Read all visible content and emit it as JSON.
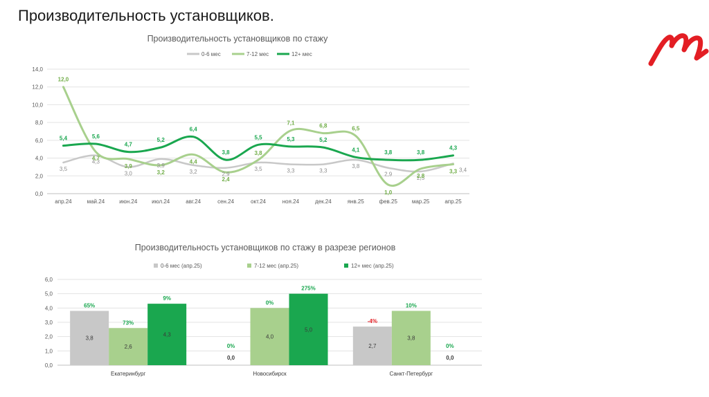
{
  "page": {
    "title": "Производительность установщиков."
  },
  "brand": {
    "logo_icon": "brand-logo-icon",
    "accent": "#e31e24"
  },
  "chart_data": [
    {
      "type": "line",
      "title": "Производительность установщиков по стажу",
      "xlabel": "",
      "ylabel": "",
      "categories": [
        "апр.24",
        "май.24",
        "июн.24",
        "июл.24",
        "авг.24",
        "сен.24",
        "окт.24",
        "ноя.24",
        "дек.24",
        "янв.25",
        "фев.25",
        "мар.25",
        "апр.25"
      ],
      "ylim": [
        0,
        14
      ],
      "yticks": [
        "0,0",
        "2,0",
        "4,0",
        "6,0",
        "8,0",
        "10,0",
        "12,0",
        "14,0"
      ],
      "grid": true,
      "legend": "top",
      "series": [
        {
          "name": "0-6 мес",
          "color": "#c8c8c8",
          "values": [
            3.5,
            4.3,
            3.0,
            3.9,
            3.2,
            2.9,
            3.5,
            3.3,
            3.3,
            3.8,
            2.9,
            2.5,
            3.4
          ],
          "labels": [
            "3,5",
            "4,3",
            "3,0",
            "3,9",
            "3,2",
            "2,9",
            "3,5",
            "3,3",
            "3,3",
            "3,8",
            "2,9",
            "2,5",
            "3,4"
          ]
        },
        {
          "name": "7-12 мес",
          "color": "#a8d08d",
          "values": [
            12.0,
            4.7,
            3.9,
            3.2,
            4.4,
            2.4,
            3.8,
            7.1,
            6.8,
            6.5,
            1.0,
            2.8,
            3.3
          ],
          "labels": [
            "12,0",
            "4,7",
            "3,9",
            "3,2",
            "4,4",
            "2,4",
            "3,8",
            "7,1",
            "6,8",
            "6,5",
            "1,0",
            "2,8",
            "3,3"
          ]
        },
        {
          "name": "12+ мес",
          "color": "#1aa74f",
          "values": [
            5.4,
            5.6,
            4.7,
            5.2,
            6.4,
            3.8,
            5.5,
            5.3,
            5.2,
            4.1,
            3.8,
            3.8,
            4.3
          ],
          "labels": [
            "5,4",
            "5,6",
            "4,7",
            "5,2",
            "6,4",
            "3,8",
            "5,5",
            "5,3",
            "5,2",
            "4,1",
            "3,8",
            "3,8",
            "4,3"
          ]
        }
      ]
    },
    {
      "type": "bar",
      "title": "Производительность установщиков по стажу в разрезе регионов",
      "xlabel": "",
      "ylabel": "",
      "categories": [
        "Екатеринбург",
        "Новосибирск",
        "Санкт-Петербург"
      ],
      "ylim": [
        0,
        6
      ],
      "yticks": [
        "0,0",
        "1,0",
        "2,0",
        "3,0",
        "4,0",
        "5,0",
        "6,0"
      ],
      "grid": true,
      "legend": "top",
      "series": [
        {
          "name": "0-6 мес (апр.25)",
          "color": "#c8c8c8",
          "values": [
            3.8,
            0.0,
            2.7
          ],
          "labels": [
            "3,8",
            "0,0",
            "2,7"
          ],
          "changes": [
            "65%",
            "0%",
            "-4%"
          ]
        },
        {
          "name": "7-12 мес (апр.25)",
          "color": "#a8d08d",
          "values": [
            2.6,
            4.0,
            3.8
          ],
          "labels": [
            "2,6",
            "4,0",
            "3,8"
          ],
          "changes": [
            "73%",
            "0%",
            "10%"
          ]
        },
        {
          "name": "12+ мес (апр.25)",
          "color": "#1aa74f",
          "values": [
            4.3,
            5.0,
            0.0
          ],
          "labels": [
            "4,3",
            "5,0",
            "0,0"
          ],
          "changes": [
            "9%",
            "275%",
            "0%"
          ]
        }
      ],
      "change_positive_color": "#1aa74f",
      "change_negative_color": "#e31e24"
    }
  ]
}
